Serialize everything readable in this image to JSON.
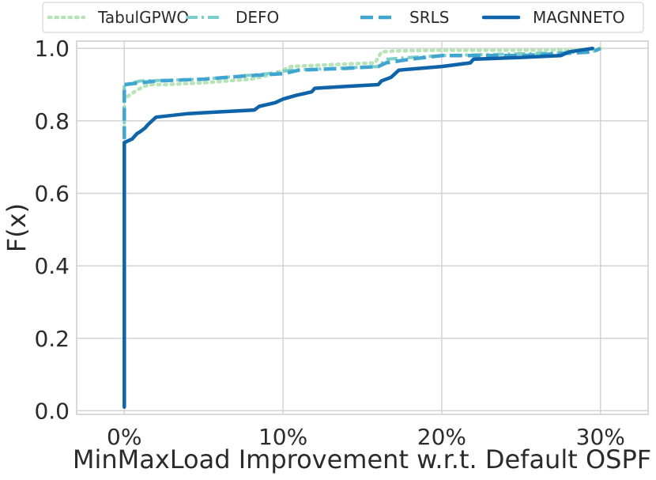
{
  "chart_data": {
    "type": "line",
    "xlabel": "MinMaxLoad Improvement w.r.t. Default OSPF",
    "ylabel": "F(x)",
    "xlim": [
      -3,
      33
    ],
    "ylim": [
      -0.01,
      1.02
    ],
    "xticks": [
      0,
      10,
      20,
      30
    ],
    "xtick_labels": [
      "0%",
      "10%",
      "20%",
      "30%"
    ],
    "yticks": [
      0.0,
      0.2,
      0.4,
      0.6,
      0.8,
      1.0
    ],
    "ytick_labels": [
      "0.0",
      "0.2",
      "0.4",
      "0.6",
      "0.8",
      "1.0"
    ],
    "grid": true,
    "legend_position": "top",
    "series": [
      {
        "name": "TabulGPWO",
        "color": "#b8e3b8",
        "dash": "dotted",
        "x": [
          0,
          0,
          0.3,
          0.8,
          1.5,
          2.5,
          5,
          8,
          9.5,
          10.5,
          12,
          14,
          15.8,
          16.2,
          17,
          20,
          25,
          29.5,
          30
        ],
        "y": [
          0.76,
          0.86,
          0.87,
          0.885,
          0.9,
          0.9,
          0.905,
          0.915,
          0.93,
          0.95,
          0.953,
          0.957,
          0.96,
          0.99,
          0.993,
          0.995,
          0.995,
          0.997,
          1.0
        ]
      },
      {
        "name": "DEFO",
        "color": "#7bcfc8",
        "dash": "dashdot",
        "x": [
          0,
          0,
          1,
          5,
          9,
          10.5,
          16,
          16.5,
          18,
          20,
          25,
          29.5,
          30
        ],
        "y": [
          0.75,
          0.9,
          0.91,
          0.915,
          0.93,
          0.94,
          0.95,
          0.97,
          0.975,
          0.98,
          0.985,
          0.99,
          1.0
        ]
      },
      {
        "name": "SRLS",
        "color": "#41a6cf",
        "dash": "dashed",
        "x": [
          0,
          0,
          1,
          2,
          5,
          8,
          10,
          11,
          14,
          16,
          16.5,
          18,
          20,
          25,
          29.5,
          30
        ],
        "y": [
          0.75,
          0.9,
          0.905,
          0.91,
          0.915,
          0.925,
          0.93,
          0.94,
          0.945,
          0.95,
          0.96,
          0.97,
          0.98,
          0.98,
          0.99,
          1.0
        ]
      },
      {
        "name": "MAGNNETO",
        "color": "#0f63a8",
        "dash": "solid",
        "x": [
          0,
          0,
          0.5,
          0.8,
          1.0,
          1.3,
          1.5,
          2,
          4,
          8.2,
          8.5,
          9.5,
          10,
          10.8,
          11.8,
          12,
          14,
          16,
          16.2,
          16.8,
          17.3,
          20,
          21.8,
          22,
          25,
          27.5,
          28,
          29.5
        ],
        "y": [
          0.01,
          0.74,
          0.75,
          0.765,
          0.77,
          0.78,
          0.79,
          0.81,
          0.82,
          0.83,
          0.84,
          0.85,
          0.86,
          0.87,
          0.88,
          0.89,
          0.895,
          0.9,
          0.91,
          0.92,
          0.94,
          0.95,
          0.96,
          0.97,
          0.975,
          0.98,
          0.99,
          1.0
        ]
      }
    ]
  }
}
